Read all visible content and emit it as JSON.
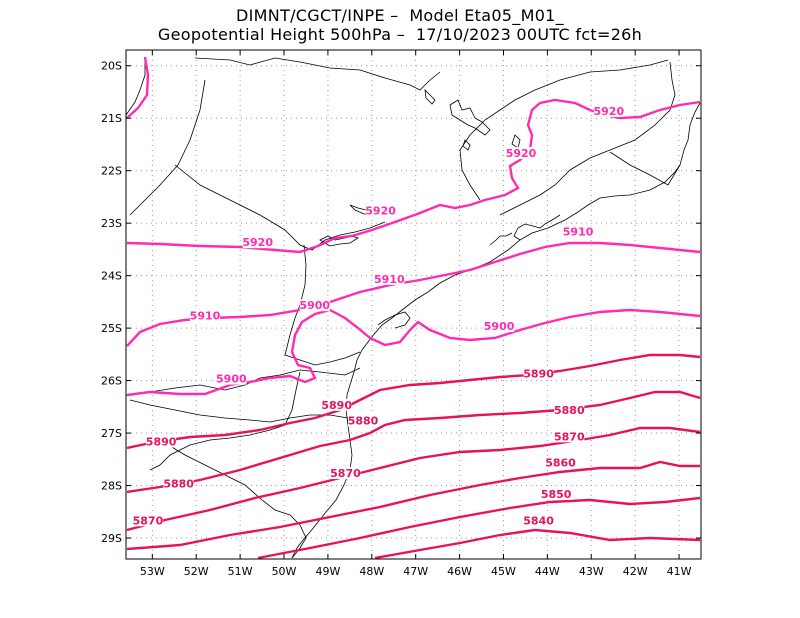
{
  "header": {
    "line1": "DIMNT/CGCT/INPE –  Model Eta05_M01_",
    "line2": "Geopotential Height 500hPa –  17/10/2023 00UTC fct=26h"
  },
  "colors": {
    "contour_upper": "#ff2bb0",
    "contour_lower": "#e8125c",
    "coast": "#000000",
    "grid": "#9a9a9a"
  },
  "map": {
    "lon_range": [
      -53.6,
      -40.5
    ],
    "lat_range": [
      -29.4,
      -19.7
    ],
    "lat_ticks": [
      {
        "value": -20,
        "label": "20S"
      },
      {
        "value": -21,
        "label": "21S"
      },
      {
        "value": -22,
        "label": "22S"
      },
      {
        "value": -23,
        "label": "23S"
      },
      {
        "value": -24,
        "label": "24S"
      },
      {
        "value": -25,
        "label": "25S"
      },
      {
        "value": -26,
        "label": "26S"
      },
      {
        "value": -27,
        "label": "27S"
      },
      {
        "value": -28,
        "label": "28S"
      },
      {
        "value": -29,
        "label": "29S"
      }
    ],
    "lon_ticks": [
      {
        "value": -53,
        "label": "53W"
      },
      {
        "value": -52,
        "label": "52W"
      },
      {
        "value": -51,
        "label": "51W"
      },
      {
        "value": -50,
        "label": "50W"
      },
      {
        "value": -49,
        "label": "49W"
      },
      {
        "value": -48,
        "label": "48W"
      },
      {
        "value": -47,
        "label": "47W"
      },
      {
        "value": -46,
        "label": "46W"
      },
      {
        "value": -45,
        "label": "45W"
      },
      {
        "value": -44,
        "label": "44W"
      },
      {
        "value": -43,
        "label": "43W"
      },
      {
        "value": -42,
        "label": "42W"
      },
      {
        "value": -41,
        "label": "41W"
      }
    ],
    "contours": [
      {
        "level": 5920,
        "label": "5920",
        "labels": [
          [
            -50.6,
            -23.4
          ],
          [
            -47.8,
            -22.8
          ],
          [
            -44.6,
            -21.7
          ],
          [
            -42.6,
            -20.9
          ]
        ]
      },
      {
        "level": 5910,
        "label": "5910",
        "labels": [
          [
            -51.8,
            -24.8
          ],
          [
            -47.6,
            -24.1
          ],
          [
            -43.3,
            -23.2
          ]
        ]
      },
      {
        "level": 5900,
        "label": "5900",
        "labels": [
          [
            -51.2,
            -26.0
          ],
          [
            -49.3,
            -24.6
          ],
          [
            -45.1,
            -25.0
          ]
        ]
      },
      {
        "level": 5890,
        "label": "5890",
        "labels": [
          [
            -52.8,
            -27.2
          ],
          [
            -48.8,
            -26.5
          ],
          [
            -44.2,
            -25.9
          ]
        ]
      },
      {
        "level": 5880,
        "label": "5880",
        "labels": [
          [
            -52.4,
            -28.0
          ],
          [
            -48.2,
            -26.8
          ],
          [
            -43.5,
            -26.6
          ]
        ]
      },
      {
        "level": 5870,
        "label": "5870",
        "labels": [
          [
            -53.1,
            -28.7
          ],
          [
            -48.6,
            -27.8
          ],
          [
            -43.5,
            -27.1
          ]
        ]
      },
      {
        "level": 5860,
        "label": "5860",
        "labels": [
          [
            -43.7,
            -27.6
          ]
        ]
      },
      {
        "level": 5850,
        "label": "5850",
        "labels": [
          [
            -43.8,
            -28.2
          ]
        ]
      },
      {
        "level": 5840,
        "label": "5840",
        "labels": [
          [
            -44.2,
            -28.7
          ]
        ]
      }
    ]
  }
}
